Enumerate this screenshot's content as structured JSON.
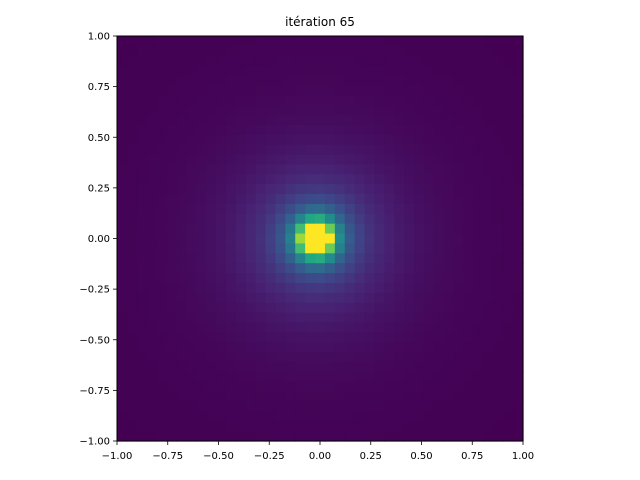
{
  "chart_data": {
    "type": "heatmap",
    "title": "itération 65",
    "xlabel": "",
    "ylabel": "",
    "xlim": [
      -1.0,
      1.0
    ],
    "ylim": [
      -1.0,
      1.0
    ],
    "grid": false,
    "legend": "none",
    "colormap": "viridis",
    "grid_cells": [
      41,
      41
    ],
    "field": {
      "center": [
        -0.02,
        0.0
      ],
      "peak_value": 1.0,
      "saturation_radius": 0.07,
      "decay": "radial, saturated core ~0.07 then falloff to background near radius 0.9"
    },
    "x_ticks": [
      "−1.00",
      "−0.75",
      "−0.50",
      "−0.25",
      "0.00",
      "0.25",
      "0.50",
      "0.75",
      "1.00"
    ],
    "y_ticks": [
      "1.00",
      "0.75",
      "0.50",
      "0.25",
      "0.00",
      "−0.25",
      "−0.50",
      "−0.75",
      "−1.00"
    ],
    "x_tick_values": [
      -1.0,
      -0.75,
      -0.5,
      -0.25,
      0.0,
      0.25,
      0.5,
      0.75,
      1.0
    ],
    "y_tick_values": [
      1.0,
      0.75,
      0.5,
      0.25,
      0.0,
      -0.25,
      -0.5,
      -0.75,
      -1.0
    ]
  }
}
